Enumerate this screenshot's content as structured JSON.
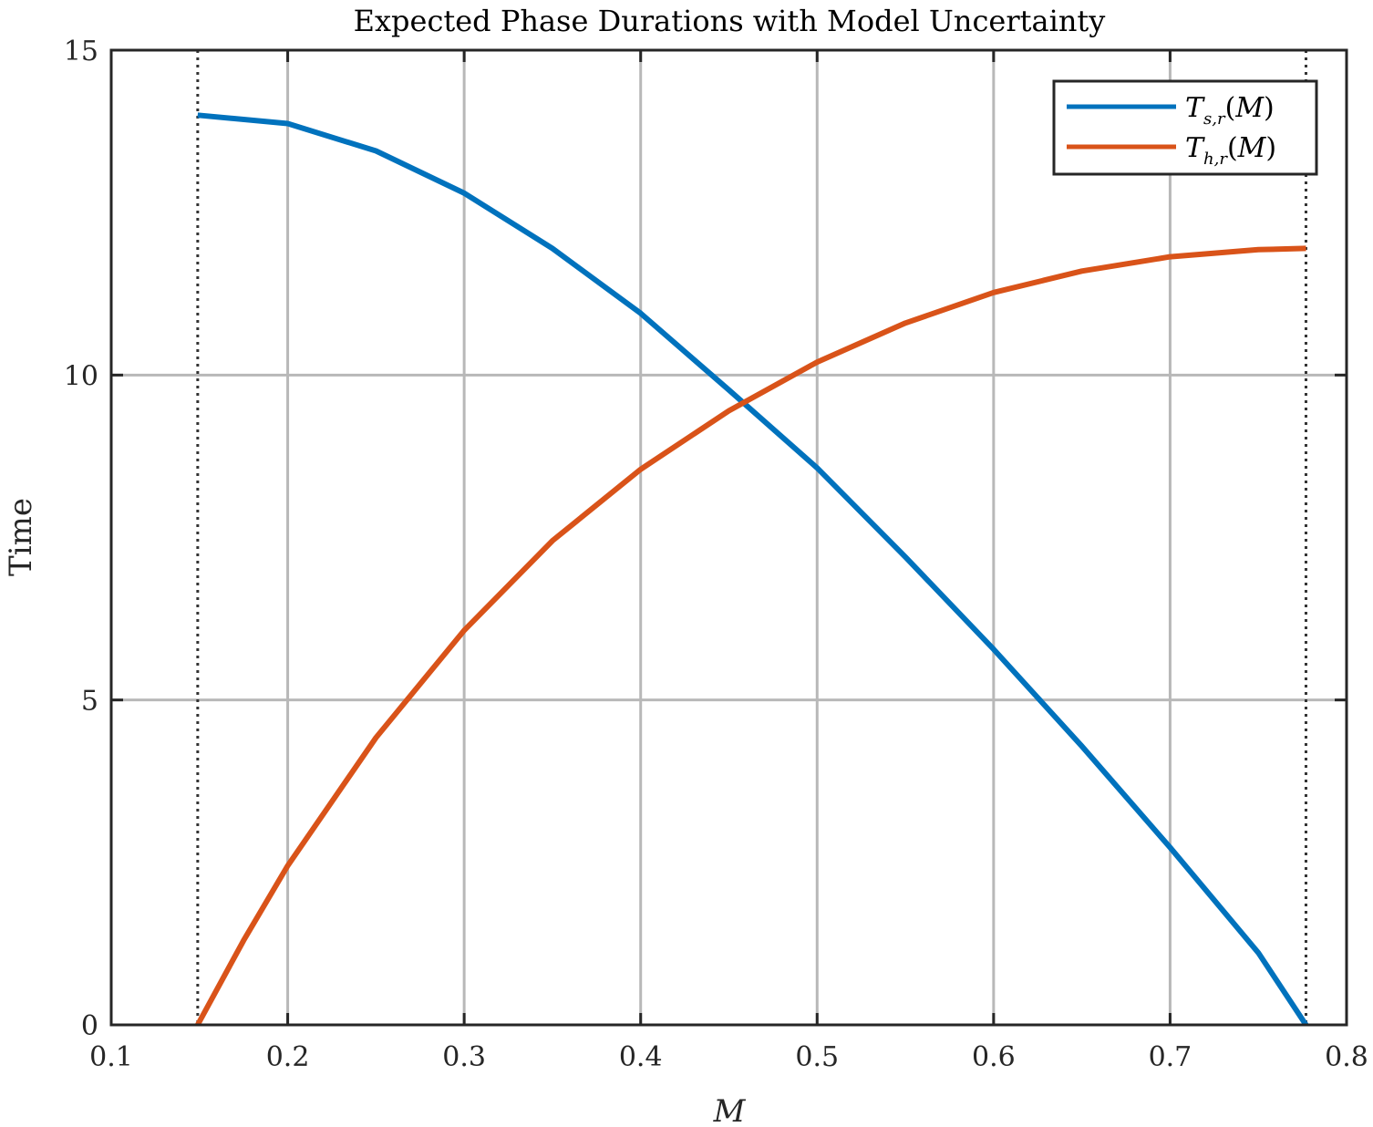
{
  "chart_data": {
    "type": "line",
    "title": "Expected Phase Durations with Model Uncertainty",
    "xlabel": "M",
    "ylabel": "Time",
    "xlim": [
      0.1,
      0.8
    ],
    "ylim": [
      0,
      15
    ],
    "xticks": [
      "0.1",
      "0.2",
      "0.3",
      "0.4",
      "0.5",
      "0.6",
      "0.7",
      "0.8"
    ],
    "yticks": [
      "0",
      "5",
      "10",
      "15"
    ],
    "grid": true,
    "legend_position": "top-right",
    "vertical_markers": [
      0.149,
      0.777
    ],
    "series": [
      {
        "name": "T_{s,r}(M)",
        "color": "#0072BD",
        "x": [
          0.149,
          0.2,
          0.25,
          0.3,
          0.35,
          0.4,
          0.45,
          0.5,
          0.55,
          0.6,
          0.65,
          0.7,
          0.75,
          0.777
        ],
        "y": [
          14.0,
          13.87,
          13.45,
          12.8,
          11.95,
          10.95,
          9.77,
          8.57,
          7.2,
          5.78,
          4.29,
          2.73,
          1.11,
          0.0
        ]
      },
      {
        "name": "T_{h,r}(M)",
        "color": "#D95319",
        "x": [
          0.149,
          0.175,
          0.2,
          0.25,
          0.3,
          0.35,
          0.4,
          0.45,
          0.5,
          0.55,
          0.6,
          0.65,
          0.7,
          0.75,
          0.777
        ],
        "y": [
          0.0,
          1.3,
          2.45,
          4.42,
          6.07,
          7.45,
          8.55,
          9.45,
          10.2,
          10.8,
          11.27,
          11.6,
          11.82,
          11.93,
          11.95
        ]
      }
    ]
  }
}
